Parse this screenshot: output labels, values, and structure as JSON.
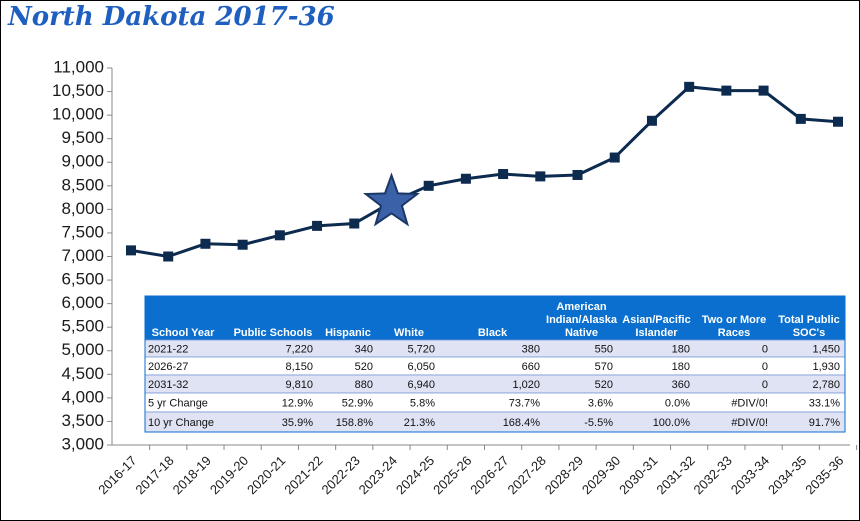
{
  "chart_data": {
    "type": "line",
    "title": "North Dakota 2017-36",
    "categories": [
      "2016-17",
      "2017-18",
      "2018-19",
      "2019-20",
      "2020-21",
      "2021-22",
      "2022-23",
      "2023-24",
      "2024-25",
      "2025-26",
      "2026-27",
      "2027-28",
      "2028-29",
      "2029-30",
      "2030-31",
      "2031-32",
      "2032-33",
      "2033-34",
      "2034-35",
      "2035-36"
    ],
    "series": [
      {
        "color": "#0d2a4f",
        "star_index": 7,
        "values": [
          7130,
          7000,
          7270,
          7250,
          7450,
          7650,
          7700,
          8150,
          8500,
          8650,
          8750,
          8700,
          8730,
          9100,
          9880,
          10600,
          10520,
          10520,
          9920,
          9860
        ]
      }
    ],
    "ylim": [
      3000,
      11000
    ],
    "yticks": [
      {
        "value": 3000,
        "label": "3,000"
      },
      {
        "value": 3500,
        "label": "3,500"
      },
      {
        "value": 4000,
        "label": "4,000"
      },
      {
        "value": 4500,
        "label": "4,500"
      },
      {
        "value": 5000,
        "label": "5,000"
      },
      {
        "value": 5500,
        "label": "5,500"
      },
      {
        "value": 6000,
        "label": "6,000"
      },
      {
        "value": 6500,
        "label": "6,500"
      },
      {
        "value": 7000,
        "label": "7,000"
      },
      {
        "value": 7500,
        "label": "7,500"
      },
      {
        "value": 8000,
        "label": "8,000"
      },
      {
        "value": 8500,
        "label": "8,500"
      },
      {
        "value": 9000,
        "label": "9,000"
      },
      {
        "value": 9500,
        "label": "9,500"
      },
      {
        "value": 10000,
        "label": "10,000"
      },
      {
        "value": 10500,
        "label": "10,500"
      },
      {
        "value": 11000,
        "label": "11,000"
      }
    ],
    "grid": false,
    "table": {
      "header": [
        [
          "School Year"
        ],
        [
          "Public Schools"
        ],
        [
          "Hispanic"
        ],
        [
          "White"
        ],
        [
          "Black"
        ],
        [
          "American",
          "Indian/Alaska",
          "Native"
        ],
        [
          "Asian/Pacific",
          "Islander"
        ],
        [
          "Two or More",
          "Races"
        ],
        [
          "Total Public",
          "SOC's"
        ]
      ],
      "rows": [
        [
          "2021-22",
          "7,220",
          "340",
          "5,720",
          "380",
          "550",
          "180",
          "0",
          "1,450"
        ],
        [
          "2026-27",
          "8,150",
          "520",
          "6,050",
          "660",
          "570",
          "180",
          "0",
          "1,930"
        ],
        [
          "2031-32",
          "9,810",
          "880",
          "6,940",
          "1,020",
          "520",
          "360",
          "0",
          "2,780"
        ],
        [
          "5 yr Change",
          "12.9%",
          "52.9%",
          "5.8%",
          "73.7%",
          "3.6%",
          "0.0%",
          "#DIV/0!",
          "33.1%"
        ],
        [
          "10 yr Change",
          "35.9%",
          "158.8%",
          "21.3%",
          "168.4%",
          "-5.5%",
          "100.0%",
          "#DIV/0!",
          "91.7%"
        ]
      ]
    }
  }
}
